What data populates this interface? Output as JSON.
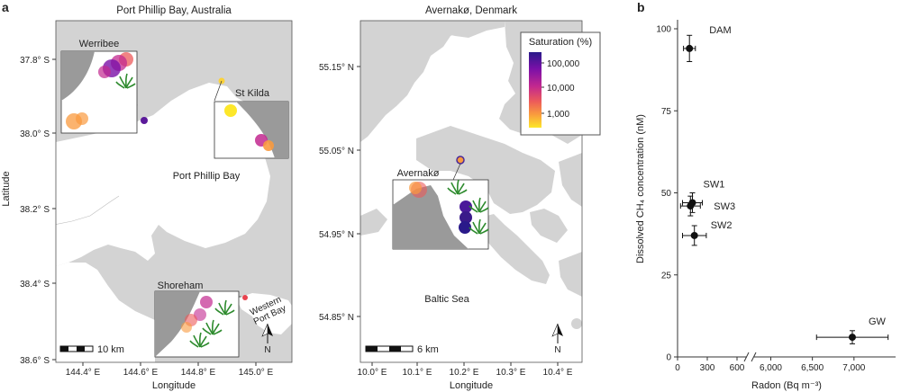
{
  "panel_a": {
    "label": "a",
    "map_left": {
      "title": "Port Phillip Bay, Australia",
      "xlabel": "Longitude",
      "ylabel": "Latitude",
      "x_ticks": [
        "144.4° E",
        "144.6° E",
        "144.8° E",
        "145.0° E"
      ],
      "y_ticks": [
        "37.8° S",
        "38.0° S",
        "38.2° S",
        "38.4° S",
        "38.6° S"
      ],
      "water_label": "Port Phillip Bay",
      "bay2_label_line1": "Western",
      "bay2_label_line2": "Port Bay",
      "insets": [
        "Werribee",
        "St Kilda",
        "Shoreham"
      ],
      "scalebar": "10 km",
      "north": "N"
    },
    "map_right": {
      "title": "Avernakø, Denmark",
      "xlabel": "Longitude",
      "x_ticks": [
        "10.0° E",
        "10.1° E",
        "10.2° E",
        "10.3° E",
        "10.4° E"
      ],
      "y_ticks": [
        "55.15° N",
        "55.05° N",
        "54.95° N",
        "54.85° N"
      ],
      "sea_label": "Baltic Sea",
      "insets": [
        "Avernakø"
      ],
      "scalebar": "6 km",
      "north": "N",
      "legend": {
        "title": "Saturation (%)",
        "ticks": [
          "100,000",
          "10,000",
          "1,000"
        ],
        "colors": [
          "#2a1a8a",
          "#7a10a8",
          "#c2288f",
          "#ec5a5a",
          "#f99a3e",
          "#fde72a"
        ]
      }
    }
  },
  "panel_b": {
    "label": "b",
    "chart_data": {
      "type": "scatter",
      "xlabel": "Radon (Bq m⁻³)",
      "ylabel": "Dissolved CH₄ concentration (nM)",
      "x_ticks_left": [
        "0",
        "300",
        "600"
      ],
      "x_ticks_right": [
        "6,000",
        "6,500",
        "7,000"
      ],
      "y_ticks": [
        "0",
        "25",
        "50",
        "75",
        "100"
      ],
      "ylim": [
        0,
        100
      ],
      "x_axis_break": true,
      "points": [
        {
          "label": "DAM",
          "x": 120,
          "y": 94,
          "xerr": 60,
          "yerr": 4
        },
        {
          "label": "SW1",
          "x": 150,
          "y": 47,
          "xerr": 100,
          "yerr": 3
        },
        {
          "label": "SW3",
          "x": 130,
          "y": 46,
          "xerr": 100,
          "yerr": 3
        },
        {
          "label": "SW2",
          "x": 170,
          "y": 37,
          "xerr": 120,
          "yerr": 3
        },
        {
          "label": "GW",
          "x": 6980,
          "y": 6,
          "xerr": 430,
          "yerr": 2
        }
      ]
    }
  }
}
